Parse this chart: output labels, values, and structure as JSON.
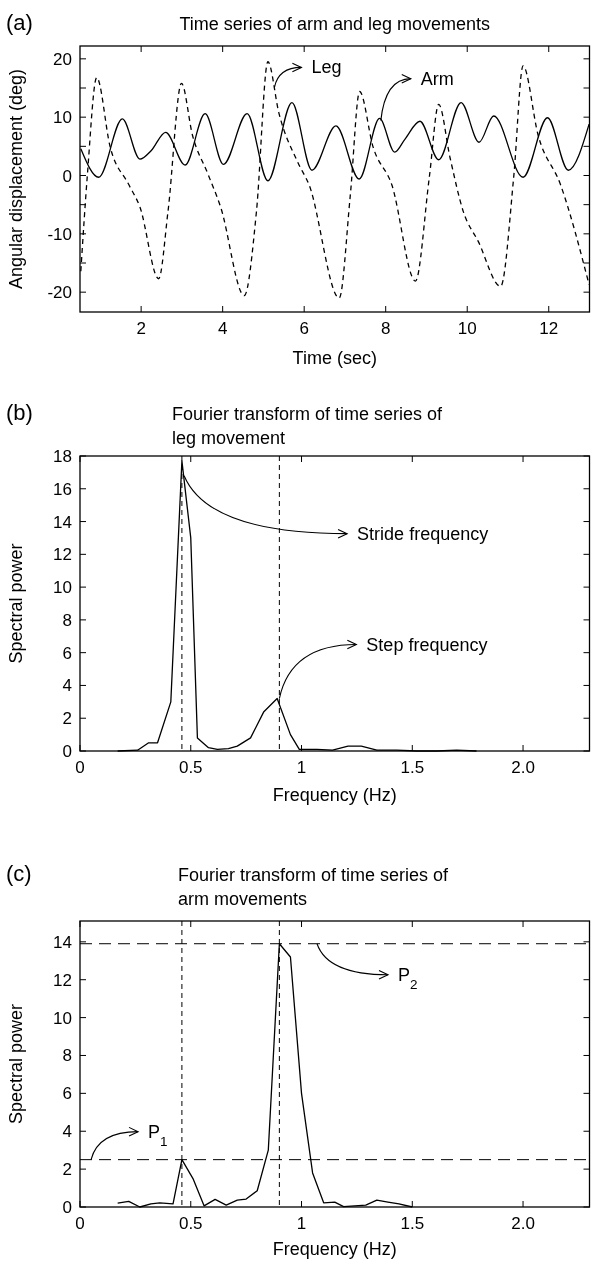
{
  "chart_data": [
    {
      "type": "line",
      "title": "Time series of arm and leg movements",
      "xlabel": "Time (sec)",
      "ylabel": "Angular displacement (deg)",
      "xlim": [
        0.5,
        13
      ],
      "xticks": [
        2,
        4,
        6,
        8,
        10,
        12
      ],
      "ylim": [
        -23.4,
        22.2
      ],
      "yticks": [
        -20,
        {
          "value": -15,
          "label": null
        },
        -10,
        {
          "value": -5,
          "label": null
        },
        0,
        {
          "value": 5,
          "label": null
        },
        10,
        {
          "value": 15,
          "label": null
        },
        20
      ],
      "marker": "none",
      "series": [
        {
          "color": "#000000",
          "line_style": "solid",
          "x": [
            0.52,
            0.96,
            1.54,
            1.97,
            2.25,
            2.6,
            3.08,
            3.57,
            4.02,
            4.6,
            5.11,
            5.7,
            6.19,
            6.78,
            7.35,
            7.85,
            8.22,
            8.47,
            8.84,
            9.3,
            9.85,
            10.29,
            10.65,
            11.37,
            11.97,
            12.48,
            12.99
          ],
          "values": [
            4.6,
            -0.3,
            9.7,
            2.8,
            4.3,
            7.4,
            1.8,
            10.6,
            1.9,
            10.6,
            -0.9,
            12.5,
            0.9,
            8.5,
            -0.6,
            9.8,
            4.0,
            6.2,
            9.3,
            2.7,
            12.5,
            5.7,
            10.2,
            -0.3,
            9.9,
            0.9,
            8.8
          ]
        },
        {
          "color": "#000000",
          "line_style": "dashed",
          "x": [
            0.52,
            0.68,
            0.91,
            1.24,
            1.7,
            1.97,
            2.43,
            2.66,
            2.99,
            3.26,
            3.63,
            3.95,
            4.53,
            4.83,
            5.11,
            5.38,
            5.84,
            6.12,
            6.86,
            7.13,
            7.36,
            7.69,
            8.15,
            8.73,
            9.07,
            9.3,
            9.58,
            9.9,
            10.27,
            10.82,
            11.14,
            11.37,
            11.74,
            12.29,
            12.99
          ],
          "values": [
            -16.4,
            0,
            16.8,
            4.9,
            -1.6,
            -5.4,
            -17.7,
            -6.1,
            15.8,
            6.9,
            0.4,
            -5.4,
            -20.6,
            -6.1,
            19.5,
            10.7,
            2.3,
            -1.6,
            -21,
            -3.5,
            14.4,
            4.9,
            -1.6,
            -18.1,
            -0.3,
            12.2,
            3.0,
            -6.1,
            -11.3,
            -19,
            -0.3,
            18.8,
            6.9,
            -1.6,
            -18.7
          ]
        }
      ],
      "annotations": [
        "(a)",
        {
          "text": "Leg",
          "x": 5.27,
          "y": 15.1
        },
        {
          "text": "Arm",
          "x": 7.88,
          "y": 9.4
        }
      ]
    },
    {
      "type": "line",
      "title": "Fourier transform of time series of leg movement",
      "xlabel": "Frequency (Hz)",
      "ylabel": "Spectral power",
      "xlim": [
        0,
        2.3
      ],
      "xticks": [
        0,
        0.5,
        1,
        1.5,
        {
          "value": 2,
          "label": "2.0"
        }
      ],
      "ylim": [
        0,
        18
      ],
      "yticks": [
        0,
        2,
        4,
        6,
        8,
        10,
        12,
        14,
        16,
        18
      ],
      "marker": "none",
      "series": [
        {
          "color": "#000000",
          "line_style": "solid",
          "x": [
            0.17,
            0.26,
            0.31,
            0.35,
            0.41,
            0.46,
            0.5,
            0.53,
            0.58,
            0.62,
            0.67,
            0.71,
            0.77,
            0.83,
            0.89,
            0.95,
            0.99,
            1.07,
            1.14,
            1.21,
            1.27,
            1.34,
            1.43,
            1.52,
            1.61,
            1.7,
            1.79
          ],
          "values": [
            0,
            0.05,
            0.5,
            0.5,
            3,
            17.7,
            13,
            0.8,
            0.2,
            0.1,
            0.15,
            0.3,
            0.8,
            2.4,
            3.2,
            1.0,
            0.1,
            0.1,
            0.05,
            0.3,
            0.3,
            0.05,
            0.05,
            0,
            0,
            0.05,
            0
          ]
        }
      ],
      "ref_lines": [
        {
          "axis": "x",
          "value": 0.46,
          "color": "#000000",
          "line_style": "dashed"
        },
        {
          "axis": "x",
          "value": 0.9,
          "color": "#000000",
          "line_style": "dashed"
        }
      ],
      "annotations": [
        "(b)",
        {
          "text": "Stride frequency",
          "x": 0.47,
          "y": 16.8
        },
        {
          "text": "Step frequency",
          "x": 0.9,
          "y": 3.2
        }
      ]
    },
    {
      "type": "line",
      "title": "Fourier transform of time series of arm movements",
      "xlabel": "Frequency (Hz)",
      "ylabel": "Spectral power",
      "xlim": [
        0,
        2.3
      ],
      "xticks": [
        0,
        0.5,
        1,
        1.5,
        {
          "value": 2,
          "label": "2.0"
        }
      ],
      "ylim": [
        0,
        15.1
      ],
      "yticks": [
        0,
        2,
        4,
        6,
        8,
        10,
        12,
        14
      ],
      "marker": "none",
      "series": [
        {
          "color": "#000000",
          "line_style": "solid",
          "x": [
            0.17,
            0.22,
            0.27,
            0.32,
            0.36,
            0.42,
            0.46,
            0.51,
            0.56,
            0.61,
            0.66,
            0.71,
            0.75,
            0.8,
            0.85,
            0.9,
            0.95,
            1.0,
            1.05,
            1.1,
            1.15,
            1.19,
            1.29,
            1.34,
            1.39,
            1.44,
            1.5
          ],
          "values": [
            0.2,
            0.3,
            0,
            0.16,
            0.22,
            0.16,
            2.5,
            1.5,
            0.06,
            0.4,
            0.1,
            0.36,
            0.42,
            0.86,
            3.0,
            13.9,
            13.2,
            6.0,
            1.8,
            0.22,
            0.26,
            0.02,
            0.1,
            0.36,
            0.26,
            0.16,
            0
          ]
        }
      ],
      "ref_lines": [
        {
          "axis": "x",
          "value": 0.46,
          "color": "#000000",
          "line_style": "dashed"
        },
        {
          "axis": "x",
          "value": 0.9,
          "color": "#000000",
          "line_style": "dashed"
        },
        {
          "axis": "y",
          "value": 13.9,
          "color": "#000000",
          "line_style": "dashed"
        },
        {
          "axis": "y",
          "value": 2.5,
          "color": "#000000",
          "line_style": "dashed"
        }
      ],
      "annotations": [
        "(c)",
        {
          "text": "P$_{2}$",
          "x": 1.07,
          "y": 13.9
        },
        {
          "text": "P$_{1}$",
          "x": 0.05,
          "y": 2.5
        }
      ]
    }
  ]
}
